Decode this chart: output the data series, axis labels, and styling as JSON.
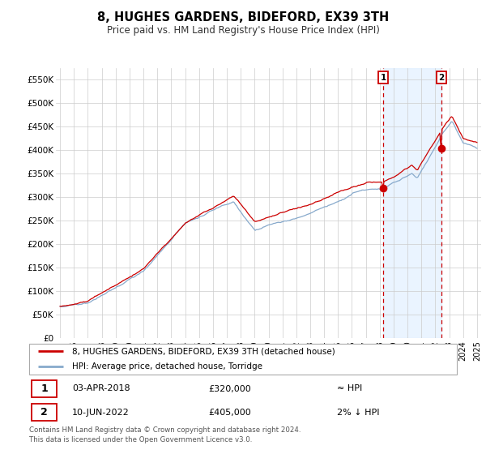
{
  "title": "8, HUGHES GARDENS, BIDEFORD, EX39 3TH",
  "subtitle": "Price paid vs. HM Land Registry's House Price Index (HPI)",
  "ylabel_ticks": [
    "£0",
    "£50K",
    "£100K",
    "£150K",
    "£200K",
    "£250K",
    "£300K",
    "£350K",
    "£400K",
    "£450K",
    "£500K",
    "£550K"
  ],
  "ytick_values": [
    0,
    50000,
    100000,
    150000,
    200000,
    250000,
    300000,
    350000,
    400000,
    450000,
    500000,
    550000
  ],
  "ylim": [
    0,
    575000
  ],
  "xlim_start": 1994.7,
  "xlim_end": 2025.3,
  "sale1_date": 2018.25,
  "sale1_price": 320000,
  "sale2_date": 2022.44,
  "sale2_price": 405000,
  "line_color_red": "#cc0000",
  "line_color_blue": "#88aacc",
  "dashed_color": "#cc0000",
  "bg_shaded_color": "#ddeeff",
  "legend_label1": "8, HUGHES GARDENS, BIDEFORD, EX39 3TH (detached house)",
  "legend_label2": "HPI: Average price, detached house, Torridge",
  "footer": "Contains HM Land Registry data © Crown copyright and database right 2024.\nThis data is licensed under the Open Government Licence v3.0."
}
